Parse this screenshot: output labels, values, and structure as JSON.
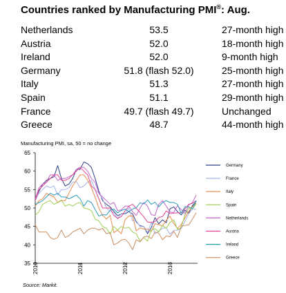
{
  "header": {
    "title_main": "Countries ranked by Manufacturing PMI",
    "title_sup": "®",
    "title_suffix": ": Aug."
  },
  "table": {
    "rows": [
      {
        "country": "Netherlands",
        "value": "53.5",
        "note": "27-month high"
      },
      {
        "country": "Austria",
        "value": "52.0",
        "note": "18-month high"
      },
      {
        "country": "Ireland",
        "value": "52.0",
        "note": "9-month high"
      },
      {
        "country": "Germany",
        "value": "51.8 (flash 52.0)",
        "note": "25-month high"
      },
      {
        "country": "Italy",
        "value": "51.3",
        "note": "27-month high"
      },
      {
        "country": "Spain",
        "value": "51.1",
        "note": "29-month high"
      },
      {
        "country": "France",
        "value": "49.7 (flash 49.7)",
        "note": "Unchanged"
      },
      {
        "country": "Greece",
        "value": "48.7",
        "note": "44-month high"
      }
    ]
  },
  "chart_subtitle": "Manufacturing PMI, sa, 50 = no change",
  "source": "Source: Markit.",
  "chart_data": {
    "type": "line",
    "ylim": [
      35,
      65
    ],
    "yticks": [
      35,
      40,
      45,
      50,
      55,
      60,
      65
    ],
    "xticks": [
      "2010",
      "2011",
      "2012",
      "2013"
    ],
    "x_start": "2010-01",
    "x_end": "2013-08",
    "grid": false,
    "legend_position": "right",
    "series": [
      {
        "name": "Germany",
        "color": "#2f3f87",
        "values": [
          52.5,
          54.5,
          56.5,
          57.5,
          58,
          58.5,
          61.5,
          58,
          56,
          56.5,
          58,
          60.5,
          60.5,
          62.5,
          62,
          61,
          58,
          54.6,
          52,
          51,
          50.3,
          49.1,
          47.9,
          48.4,
          48.4,
          49,
          48.4,
          46.2,
          45.2,
          45,
          43,
          44.7,
          47.4,
          45.7,
          46.8,
          46,
          49.8,
          50.3,
          49,
          48.1,
          49.4,
          48.6,
          50.7,
          51.8
        ]
      },
      {
        "name": "France",
        "color": "#aab4e6",
        "values": [
          52,
          54,
          55,
          56,
          55.5,
          56,
          53.5,
          55,
          55,
          55.5,
          57,
          57.2,
          55.5,
          56,
          57,
          57.5,
          55,
          54,
          52.5,
          50,
          49,
          48.8,
          47,
          48.5,
          48.5,
          50,
          46.5,
          46.5,
          45,
          45,
          43.4,
          46,
          43,
          43.7,
          44.5,
          44.6,
          42.9,
          43.9,
          44,
          44.4,
          46.4,
          48.4,
          49.7,
          49.7
        ]
      },
      {
        "name": "Italy",
        "color": "#e8884a",
        "values": [
          50.5,
          52,
          52.5,
          54,
          53.5,
          53,
          51.5,
          52,
          52,
          54,
          56,
          57.5,
          59,
          59,
          57.5,
          55.5,
          52.9,
          50,
          48,
          47,
          48,
          43.3,
          44,
          43,
          46.8,
          47.8,
          47.9,
          43.8,
          44.6,
          44.3,
          44.3,
          43.6,
          45.7,
          45.5,
          45.1,
          46.7,
          47.8,
          45.8,
          44.5,
          45.5,
          47.3,
          49.1,
          50.4,
          51.3
        ]
      },
      {
        "name": "Spain",
        "color": "#9ccf4f",
        "values": [
          48,
          49,
          51,
          51.6,
          52,
          51,
          51.5,
          52.2,
          50.5,
          51,
          50.5,
          51.2,
          51.5,
          50,
          49.8,
          49.3,
          47,
          46.5,
          45,
          44.5,
          43,
          45,
          44,
          45,
          44.5,
          44.8,
          43.5,
          43,
          41,
          42,
          41,
          44,
          44.4,
          43.5,
          45.3,
          44.5,
          46.1,
          46.8,
          44.2,
          44.7,
          48.1,
          50,
          49.8,
          51.1
        ]
      },
      {
        "name": "Netherlands",
        "color": "#c266c8",
        "values": [
          52.5,
          55.5,
          56.5,
          57,
          59,
          59,
          57.5,
          58,
          58,
          58.5,
          59,
          60.5,
          61,
          61,
          60,
          58,
          57,
          54,
          53,
          52,
          51,
          51.5,
          49.3,
          49.5,
          50.5,
          50.5,
          49,
          48,
          50,
          51.5,
          50.5,
          48.2,
          48,
          51,
          52,
          50.5,
          48.9,
          48.8,
          50.6,
          49.6,
          48.5,
          50.8,
          51.5,
          53.5
        ]
      },
      {
        "name": "Austria",
        "color": "#e0458f",
        "values": [
          52,
          55,
          56,
          57,
          58,
          59,
          59,
          57.5,
          57.5,
          58,
          59,
          60,
          61,
          60,
          59,
          56,
          55,
          52.5,
          50,
          50,
          50,
          48,
          47.2,
          47.7,
          49.2,
          50.5,
          51,
          49.9,
          48.8,
          47.6,
          46.2,
          46.1,
          46.3,
          47.4,
          47.7,
          49.2,
          48.5,
          48.6,
          48.7,
          48.7,
          49.8,
          51,
          51.3,
          52
        ]
      },
      {
        "name": "Ireland",
        "color": "#2a9bb8",
        "values": [
          51,
          51.5,
          52,
          53,
          54,
          53.5,
          54,
          53,
          53,
          52.5,
          53,
          53.5,
          52.5,
          50.5,
          52,
          51.5,
          49.6,
          47.8,
          48.2,
          48.1,
          49.4,
          49.7,
          48.7,
          49.3,
          49.7,
          49,
          49.7,
          50.1,
          51.4,
          51.1,
          52.2,
          51,
          51.6,
          50.3,
          51.5,
          52,
          51.5,
          51.5,
          51,
          48.6,
          50.3,
          50.3,
          49.8,
          52
        ]
      },
      {
        "name": "Greece",
        "color": "#c98d5f",
        "values": [
          45.5,
          43.5,
          43.5,
          43.5,
          42,
          41.5,
          42,
          44,
          42,
          42.5,
          43.5,
          44,
          44.5,
          43,
          44,
          44.5,
          44.5,
          44,
          44.5,
          43,
          43.3,
          40,
          40.5,
          41.3,
          41.5,
          40.5,
          38.7,
          41.4,
          40.8,
          42.1,
          42.4,
          41.7,
          43.5,
          43.2,
          41.4,
          42.4,
          42.2,
          43.7,
          42,
          45,
          45.3,
          45.4,
          47,
          48.7
        ]
      }
    ]
  }
}
